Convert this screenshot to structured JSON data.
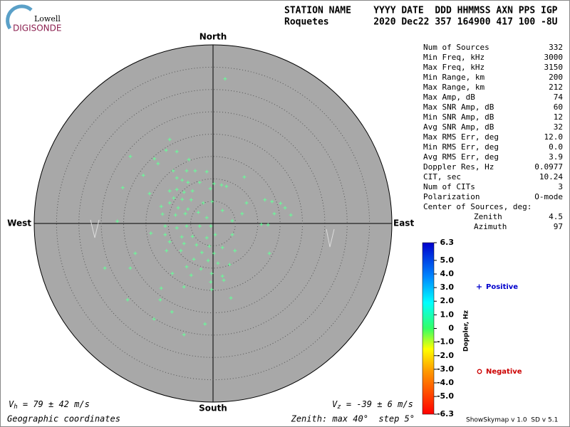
{
  "header": {
    "logo_top": "Lowell",
    "logo_main": "DIGISONDE",
    "line1": "STATION NAME    YYYY DATE  DDD HHMMSS AXN PPS IGP",
    "line2": "Roquetes        2020 Dec22 357 164900 417 100 -8U"
  },
  "stats": [
    {
      "label": "Num of Sources",
      "value": "332"
    },
    {
      "label": "Min Freq, kHz",
      "value": "3000"
    },
    {
      "label": "Max Freq, kHz",
      "value": "3150"
    },
    {
      "label": "Min Range, km",
      "value": "200"
    },
    {
      "label": "Max Range, km",
      "value": "212"
    },
    {
      "label": "Max Amp, dB",
      "value": "74"
    },
    {
      "label": "Max SNR Amp, dB",
      "value": "60"
    },
    {
      "label": "Min SNR Amp, dB",
      "value": "12"
    },
    {
      "label": "Avg SNR Amp, dB",
      "value": "32"
    },
    {
      "label": "Max RMS Err, deg",
      "value": "12.0"
    },
    {
      "label": "Min RMS Err, deg",
      "value": "0.0"
    },
    {
      "label": "Avg RMS Err, deg",
      "value": "3.9"
    },
    {
      "label": "Doppler Res, Hz",
      "value": "0.0977"
    },
    {
      "label": "CIT, sec",
      "value": "10.24"
    },
    {
      "label": "Num of CITs",
      "value": "3"
    },
    {
      "label": "Polarization",
      "value": "O-mode"
    }
  ],
  "center": {
    "title": "Center of Sources, deg:",
    "rows": [
      {
        "label": "Zenith",
        "value": "4.5"
      },
      {
        "label": "Azimuth",
        "value": "97"
      }
    ]
  },
  "footer": {
    "vh": {
      "symbol": "V",
      "sub": "h",
      "text": " = 79 ± 42 m/s"
    },
    "vz": {
      "symbol": "V",
      "sub": "z",
      "text": " = -39 ± 6 m/s"
    },
    "coords": "Geographic coordinates",
    "zenith": "Zenith: max 40°  step 5°",
    "version": "ShowSkymap v 1.0  SD v 5.1"
  },
  "chart_data": {
    "type": "scatter",
    "directions": {
      "north": "North",
      "south": "South",
      "east": "East",
      "west": "West"
    },
    "xlim": [
      -40,
      40
    ],
    "ylim": [
      -40,
      40
    ],
    "rlim": [
      0,
      40
    ],
    "rticks": [
      5,
      10,
      15,
      20,
      25,
      30,
      35
    ],
    "series": [
      {
        "name": "Positive",
        "color": "#0000cc",
        "point_color": "#66ff99",
        "x": [
          2.7,
          -9.7,
          -10.5,
          -8.1,
          -18.5,
          -13.1,
          -5.4,
          -12.3,
          -15.6,
          -8.9,
          -5.9,
          -4.0,
          -1.4,
          -8.1,
          -6.9,
          -5.6,
          -3.0,
          0.2,
          1.9,
          3.0,
          7.0,
          -20.2,
          -9.7,
          -8.1,
          -6.5,
          -4.6,
          -0.6,
          -14.2,
          -8.8,
          -6.9,
          -4.9,
          -2.2,
          -0.2,
          -9.7,
          -11.6,
          -7.8,
          -5.6,
          7.5,
          11.6,
          13.2,
          15.1,
          16.1,
          13.7,
          17.4,
          -11.3,
          -8.4,
          -6.2,
          -3.3,
          -1.4,
          2.1,
          4.3,
          6.5,
          10.8,
          12.3,
          -21.4,
          -10.7,
          -8.1,
          -5.9,
          -3.0,
          -0.5,
          -13.9,
          -10.7,
          -7.0,
          -4.6,
          -1.4,
          0.5,
          4.3,
          -9.7,
          -6.5,
          -3.7,
          -0.8,
          2.1,
          -10.4,
          -7.2,
          -2.5,
          0.2,
          4.9,
          12.6,
          -17.4,
          -4.3,
          -1.1,
          1.1,
          3.7,
          -5.9,
          -2.7,
          -0.3,
          2.1,
          -24.2,
          -18.5,
          -9.1,
          -4.9,
          -0.5,
          2.4,
          -11.6,
          -6.5,
          -0.3,
          -19.1,
          -11.8,
          4.0,
          -9.2,
          -13.2,
          -1.8,
          -6.5
        ],
        "values": [
          32.4,
          18.8,
          16.4,
          16.1,
          15.0,
          14.5,
          14.3,
          13.4,
          10.8,
          11.8,
          11.8,
          11.8,
          11.6,
          10.2,
          9.7,
          9.2,
          9.2,
          8.9,
          8.6,
          8.3,
          10.4,
          8.0,
          7.3,
          7.6,
          7.0,
          7.3,
          7.8,
          6.7,
          5.7,
          5.4,
          5.3,
          4.6,
          4.9,
          4.6,
          3.8,
          3.5,
          3.2,
          4.6,
          5.3,
          4.9,
          4.5,
          3.5,
          2.2,
          1.9,
          2.1,
          1.9,
          2.2,
          2.5,
          1.3,
          2.9,
          0.6,
          2.2,
          -0.2,
          -0.3,
          0.5,
          -0.6,
          -1.0,
          -0.6,
          -0.6,
          -0.6,
          -2.2,
          -2.5,
          -3.0,
          -2.9,
          -3.2,
          -2.5,
          -2.5,
          -4.1,
          -4.5,
          -4.8,
          -5.1,
          -5.4,
          -6.1,
          -6.1,
          -6.5,
          -6.7,
          -6.1,
          -6.7,
          -6.7,
          -8.0,
          -8.3,
          -8.9,
          -9.2,
          -9.7,
          -10.2,
          -11.2,
          -11.8,
          -10.0,
          -10.0,
          -11.2,
          -11.6,
          -13.1,
          -12.7,
          -14.5,
          -14.2,
          -14.8,
          -17.1,
          -17.1,
          -16.7,
          -19.8,
          -21.4,
          -22.5,
          -24.9
        ]
      },
      {
        "name": "Negative",
        "color": "#cc0000",
        "point_color": "#cc0000",
        "x": [],
        "values": []
      }
    ],
    "colorbar": {
      "label": "Doppler, Hz",
      "lim": [
        -6.3,
        6.3
      ],
      "ticks": [
        6.3,
        {
          "value": 5,
          "label": "5.0"
        },
        {
          "value": 4,
          "label": "4.0"
        },
        {
          "value": 3,
          "label": "3.0"
        },
        {
          "value": 2,
          "label": "2.0"
        },
        {
          "value": 1,
          "label": "1.0"
        },
        0,
        {
          "value": -1,
          "label": "-1.0"
        },
        {
          "value": -2,
          "label": "-2.0"
        },
        {
          "value": -3,
          "label": "-3.0"
        },
        {
          "value": -4,
          "label": "-4.0"
        },
        {
          "value": -5,
          "label": "-5.0"
        },
        -6.3
      ]
    }
  }
}
